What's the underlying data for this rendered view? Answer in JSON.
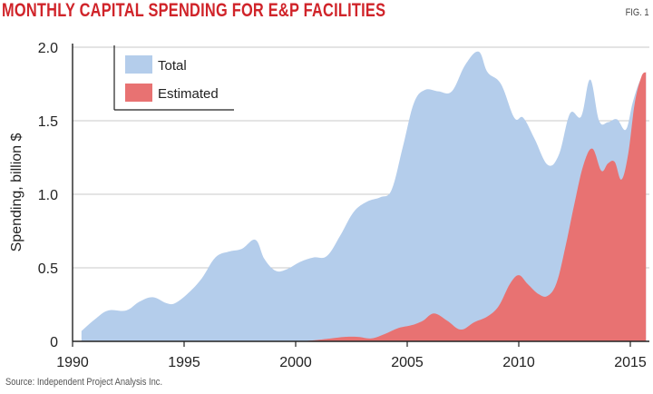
{
  "header": {
    "title": "MONTHLY CAPITAL SPENDING FOR E&P FACILITIES",
    "fig_label": "FIG. 1"
  },
  "footer": {
    "source": "Source: Independent Project Analysis Inc."
  },
  "colors": {
    "title": "#d0242a",
    "total": "#b4cdeb",
    "estimated": "#e87272",
    "grid": "#c8c8c8",
    "axis": "#222222"
  },
  "chart_data": {
    "type": "area",
    "title": "MONTHLY CAPITAL SPENDING FOR E&P FACILITIES",
    "xlabel": "",
    "ylabel": "Spending, billion $",
    "xlim": [
      1990,
      2015.8
    ],
    "ylim": [
      0,
      2.0
    ],
    "xticks": [
      1990,
      1995,
      2000,
      2005,
      2010,
      2015
    ],
    "yticks": [
      0,
      0.5,
      1.0,
      1.5,
      2.0
    ],
    "ytick_labels": [
      "0",
      "0.5",
      "1.0",
      "1.5",
      "2.0"
    ],
    "grid": "horizontal",
    "legend": {
      "position": "top-left",
      "entries": [
        "Total",
        "Estimated"
      ]
    },
    "series": [
      {
        "name": "Total",
        "x": [
          1990.4,
          1991.0,
          1991.6,
          1992.4,
          1993.0,
          1993.6,
          1994.2,
          1994.6,
          1995.2,
          1995.8,
          1996.4,
          1997.0,
          1997.6,
          1998.2,
          1998.6,
          1999.1,
          1999.6,
          2000.2,
          2000.8,
          2001.4,
          2002.0,
          2002.6,
          2003.2,
          2003.8,
          2004.3,
          2004.8,
          2005.3,
          2005.8,
          2006.4,
          2007.0,
          2007.6,
          2008.2,
          2008.6,
          2009.2,
          2009.8,
          2010.2,
          2010.7,
          2011.3,
          2011.8,
          2012.3,
          2012.8,
          2013.2,
          2013.6,
          2014.0,
          2014.4,
          2014.8,
          2015.1,
          2015.4,
          2015.7
        ],
        "values": [
          0.07,
          0.15,
          0.21,
          0.21,
          0.27,
          0.3,
          0.26,
          0.26,
          0.33,
          0.43,
          0.57,
          0.61,
          0.63,
          0.69,
          0.56,
          0.48,
          0.49,
          0.54,
          0.57,
          0.58,
          0.72,
          0.88,
          0.95,
          0.98,
          1.03,
          1.32,
          1.62,
          1.71,
          1.7,
          1.7,
          1.88,
          1.97,
          1.83,
          1.75,
          1.52,
          1.52,
          1.38,
          1.2,
          1.27,
          1.55,
          1.53,
          1.78,
          1.5,
          1.49,
          1.51,
          1.44,
          1.62,
          1.76,
          1.83
        ]
      },
      {
        "name": "Estimated",
        "x": [
          2000.3,
          2001.0,
          2001.6,
          2002.2,
          2002.8,
          2003.4,
          2004.0,
          2004.6,
          2005.2,
          2005.7,
          2006.2,
          2006.8,
          2007.4,
          2008.0,
          2008.6,
          2009.1,
          2009.6,
          2010.0,
          2010.4,
          2010.9,
          2011.3,
          2011.7,
          2012.1,
          2012.5,
          2012.9,
          2013.3,
          2013.7,
          2014.0,
          2014.3,
          2014.6,
          2014.9,
          2015.2,
          2015.5,
          2015.7
        ],
        "values": [
          0.0,
          0.01,
          0.02,
          0.03,
          0.03,
          0.02,
          0.05,
          0.09,
          0.11,
          0.14,
          0.19,
          0.14,
          0.08,
          0.13,
          0.17,
          0.24,
          0.39,
          0.45,
          0.39,
          0.32,
          0.31,
          0.4,
          0.65,
          0.94,
          1.2,
          1.31,
          1.16,
          1.21,
          1.22,
          1.1,
          1.27,
          1.62,
          1.8,
          1.83
        ]
      }
    ]
  }
}
